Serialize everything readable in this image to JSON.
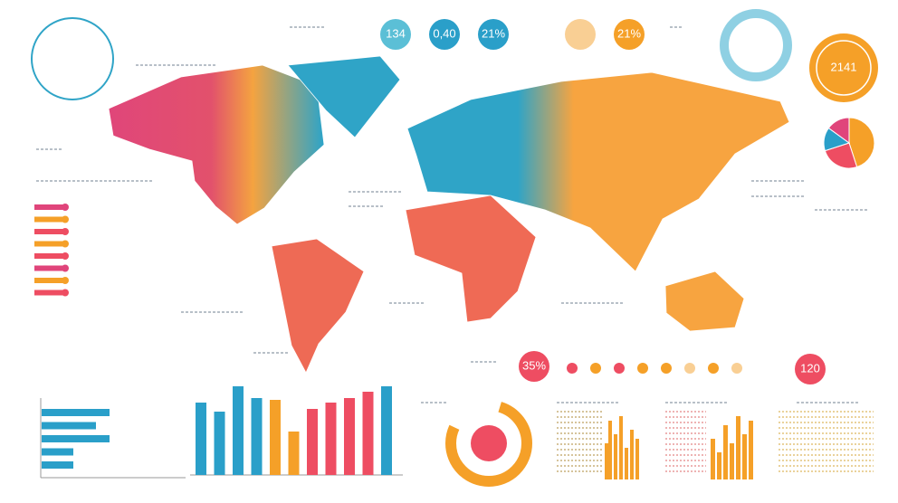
{
  "badges": [
    {
      "label": "134",
      "color": "#5bbfd6"
    },
    {
      "label": "0,40",
      "color": "#2a9fc9"
    },
    {
      "label": "21%",
      "color": "#2a9fc9"
    },
    {
      "label": "21%",
      "color": "#f5a028"
    }
  ],
  "big_badge": {
    "label": "2141",
    "color": "#f5a028"
  },
  "red_badge": {
    "label": "35%",
    "color": "#ee4d62"
  },
  "small_badge": {
    "label": "120",
    "color": "#ee4d62"
  },
  "bar_chart": {
    "values": [
      80,
      70,
      98,
      85,
      83,
      48,
      73,
      80,
      85,
      92,
      98
    ],
    "colors": [
      "#2a9fc9",
      "#2a9fc9",
      "#2a9fc9",
      "#2a9fc9",
      "#f5a028",
      "#f5a028",
      "#ee4d62",
      "#ee4d62",
      "#ee4d62",
      "#ee4d62",
      "#2a9fc9"
    ]
  },
  "hbar_chart": {
    "values": [
      75,
      60,
      75,
      35,
      35
    ],
    "color": "#2a9fc9"
  },
  "pie": {
    "values": [
      45,
      25,
      15,
      15
    ],
    "colors": [
      "#f5a028",
      "#ee4d62",
      "#2a9fc9",
      "#e0457b"
    ]
  }
}
